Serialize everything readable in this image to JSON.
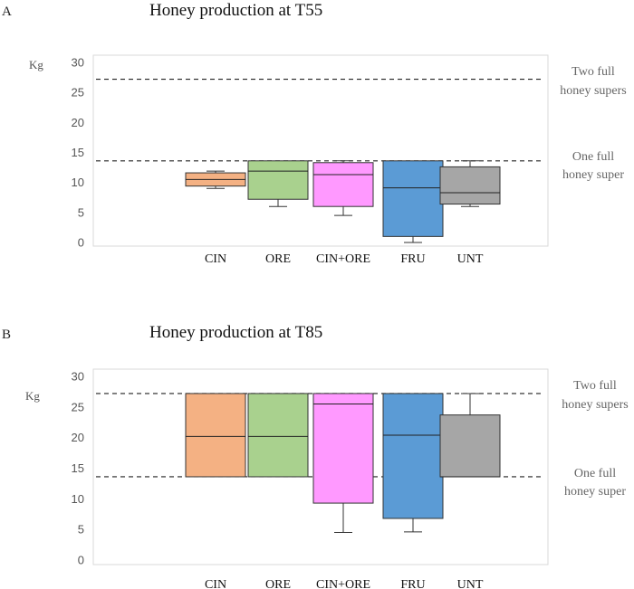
{
  "chart_data": [
    {
      "type": "box",
      "panel_label": "A",
      "title": "Honey production at T55",
      "ylabel": "Kg",
      "ylim": [
        0,
        30
      ],
      "yticks": [
        0,
        5,
        10,
        15,
        20,
        25,
        30
      ],
      "reference_lines": [
        {
          "value": 27.2,
          "label_line1": "Two full",
          "label_line2": "honey supers"
        },
        {
          "value": 13.6,
          "label_line1": "One full",
          "label_line2": "honey super"
        }
      ],
      "categories": [
        "CIN",
        "ORE",
        "CIN+ORE",
        "FRU",
        "UNT"
      ],
      "boxes": [
        {
          "name": "CIN",
          "color": "#F4B183",
          "min": 9.0,
          "q1": 9.4,
          "median": 10.5,
          "q3": 11.6,
          "max": 11.9
        },
        {
          "name": "ORE",
          "color": "#A9D18E",
          "min": 6.0,
          "q1": 7.2,
          "median": 11.9,
          "q3": 13.6,
          "max": 13.6
        },
        {
          "name": "CIN+ORE",
          "color": "#FF99FF",
          "min": 4.5,
          "q1": 6.0,
          "median": 11.3,
          "q3": 13.3,
          "max": 13.6
        },
        {
          "name": "FRU",
          "color": "#5B9BD5",
          "min": 0.0,
          "q1": 1.0,
          "median": 9.1,
          "q3": 13.6,
          "max": 13.6
        },
        {
          "name": "UNT",
          "color": "#A6A6A6",
          "min": 6.0,
          "q1": 6.4,
          "median": 8.3,
          "q3": 12.6,
          "max": 13.6
        }
      ]
    },
    {
      "type": "box",
      "panel_label": "B",
      "title": "Honey production at T85",
      "ylabel": "Kg",
      "ylim": [
        0,
        30
      ],
      "yticks": [
        0,
        5,
        10,
        15,
        20,
        25,
        30
      ],
      "reference_lines": [
        {
          "value": 27.2,
          "label_line1": "Two full",
          "label_line2": "honey supers"
        },
        {
          "value": 13.6,
          "label_line1": "One full",
          "label_line2": "honey super"
        }
      ],
      "categories": [
        "CIN",
        "ORE",
        "CIN+ORE",
        "FRU",
        "UNT"
      ],
      "boxes": [
        {
          "name": "CIN",
          "color": "#F4B183",
          "min": 13.6,
          "q1": 13.6,
          "median": 20.2,
          "q3": 27.2,
          "max": 27.2
        },
        {
          "name": "ORE",
          "color": "#A9D18E",
          "min": 13.6,
          "q1": 13.6,
          "median": 20.2,
          "q3": 27.2,
          "max": 27.2
        },
        {
          "name": "CIN+ORE",
          "color": "#FF99FF",
          "min": 4.5,
          "q1": 9.3,
          "median": 25.5,
          "q3": 27.2,
          "max": 27.2
        },
        {
          "name": "FRU",
          "color": "#5B9BD5",
          "min": 4.6,
          "q1": 6.8,
          "median": 20.4,
          "q3": 27.2,
          "max": 27.2
        },
        {
          "name": "UNT",
          "color": "#A6A6A6",
          "min": 13.6,
          "q1": 13.6,
          "median": 13.6,
          "q3": 23.7,
          "max": 27.2
        }
      ]
    }
  ]
}
